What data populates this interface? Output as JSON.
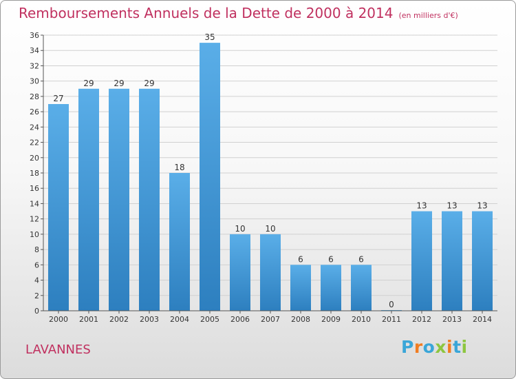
{
  "title": "Remboursements Annuels de la Dette de 2000 à 2014",
  "subtitle": "(en milliers d'€)",
  "commune": "LAVANNES",
  "logo": {
    "text": "Proxiti",
    "letters": [
      {
        "ch": "P",
        "color": "#3aa6d8"
      },
      {
        "ch": "r",
        "color": "#f07d22"
      },
      {
        "ch": "o",
        "color": "#3aa6d8"
      },
      {
        "ch": "x",
        "color": "#8dc63f"
      },
      {
        "ch": "i",
        "color": "#f07d22"
      },
      {
        "ch": "t",
        "color": "#3aa6d8"
      },
      {
        "ch": "i",
        "color": "#8dc63f"
      }
    ]
  },
  "colors": {
    "title": "#c0305f",
    "bar_top": "#5aaee8",
    "bar_bottom": "#2d7fbf",
    "grid": "#d0d0d0",
    "axis": "#555555"
  },
  "chart_data": {
    "type": "bar",
    "categories": [
      "2000",
      "2001",
      "2002",
      "2003",
      "2004",
      "2005",
      "2006",
      "2007",
      "2008",
      "2009",
      "2010",
      "2011",
      "2012",
      "2013",
      "2014"
    ],
    "values": [
      27,
      29,
      29,
      29,
      18,
      35,
      10,
      10,
      6,
      6,
      6,
      0,
      13,
      13,
      13
    ],
    "ylim": [
      0,
      36
    ],
    "yticks": [
      0,
      2,
      4,
      6,
      8,
      10,
      12,
      14,
      16,
      18,
      20,
      22,
      24,
      26,
      28,
      30,
      32,
      34,
      36
    ],
    "grid": true,
    "xlabel": "",
    "ylabel": ""
  }
}
